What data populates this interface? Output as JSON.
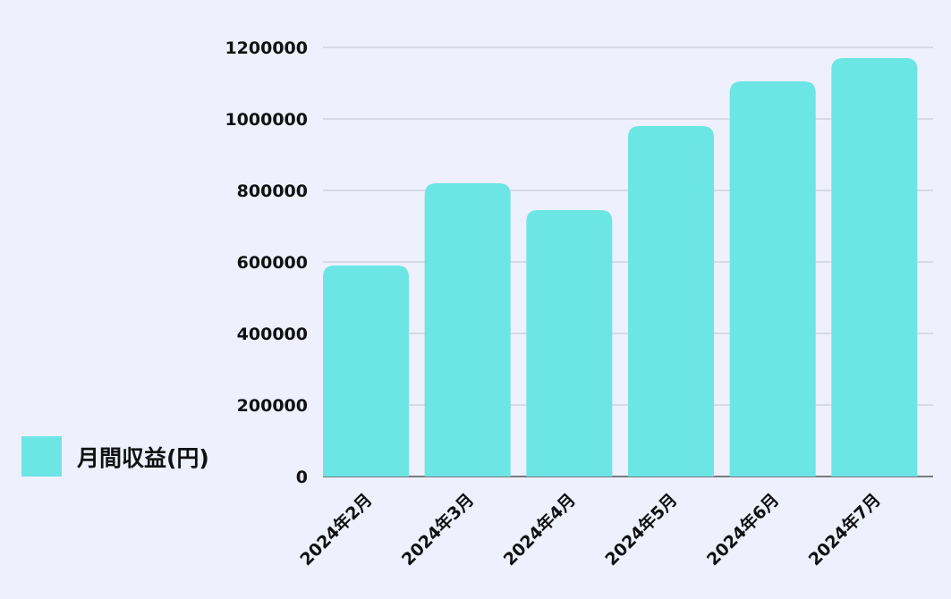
{
  "chart_data": {
    "type": "bar",
    "categories": [
      "2024年2月",
      "2024年3月",
      "2024年4月",
      "2024年5月",
      "2024年6月",
      "2024年7月"
    ],
    "series": [
      {
        "name": "月間収益(円)",
        "values": [
          590000,
          820000,
          745000,
          980000,
          1105000,
          1170000
        ]
      }
    ],
    "title": "",
    "xlabel": "",
    "ylabel": "",
    "ylim": [
      0,
      1200000
    ],
    "yticks": [
      "0",
      "200000",
      "400000",
      "600000",
      "800000",
      "1000000",
      "1200000"
    ],
    "grid": true,
    "legend_position": "left",
    "bar_color": "#6ce5e5"
  }
}
